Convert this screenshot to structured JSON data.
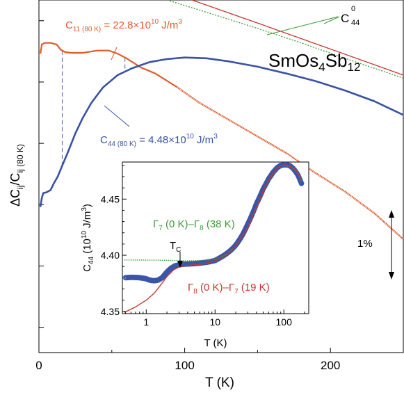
{
  "chart_data": [
    {
      "type": "line",
      "id": "main",
      "x": {
        "label": "T (K)",
        "lim": [
          0,
          250
        ],
        "ticks": [
          0,
          100,
          200
        ],
        "tick_labels": [
          "0",
          "100",
          "200"
        ]
      },
      "y": {
        "label": "ΔC",
        "label_sub": "ij",
        "label_mid": "/C",
        "label_sub2": "ij (80 K)",
        "percent_range": [
          -22.3,
          0.7
        ],
        "scale_bar": "1%"
      },
      "material": {
        "base": "SmOs",
        "s1": "4",
        "mid": "Sb",
        "s2": "12"
      },
      "series": [
        {
          "name": "C11",
          "annotation": {
            "base": "C",
            "sub": "11 (80 K)",
            "eq": " = 22.8×10",
            "sup": "10",
            "unit": " J/m",
            "sup2": "3"
          },
          "points": [
            [
              1,
              -2.8
            ],
            [
              2,
              -2.2
            ],
            [
              4,
              -2.1
            ],
            [
              8,
              -2.1
            ],
            [
              12,
              -2.2
            ],
            [
              13,
              -2.3
            ],
            [
              15,
              -2.55
            ],
            [
              18,
              -2.7
            ],
            [
              22,
              -2.75
            ],
            [
              30,
              -2.75
            ],
            [
              40,
              -2.6
            ],
            [
              48,
              -2.6
            ],
            [
              54,
              -2.8
            ],
            [
              60,
              -3.1
            ],
            [
              70,
              -3.7
            ],
            [
              80,
              -4.1
            ],
            [
              95,
              -5.0
            ],
            [
              110,
              -6.0
            ],
            [
              130,
              -7.1
            ],
            [
              150,
              -8.2
            ],
            [
              170,
              -9.3
            ],
            [
              190,
              -10.6
            ],
            [
              210,
              -11.8
            ],
            [
              230,
              -13.2
            ],
            [
              250,
              -14.9
            ]
          ]
        },
        {
          "name": "C44",
          "annotation": {
            "base": "C",
            "sub": "44 (80 K)",
            "eq": " = 4.48×10",
            "sup": "10",
            "unit": " J/m",
            "sup2": "3"
          },
          "points": [
            [
              1,
              -12.8
            ],
            [
              2,
              -12.2
            ],
            [
              3,
              -11.9
            ],
            [
              5,
              -11.85
            ],
            [
              8,
              -11.7
            ],
            [
              10,
              -11.3
            ],
            [
              13,
              -10.8
            ],
            [
              16,
              -10.1
            ],
            [
              20,
              -9.2
            ],
            [
              25,
              -8.0
            ],
            [
              30,
              -7.0
            ],
            [
              36,
              -6.0
            ],
            [
              44,
              -5.0
            ],
            [
              54,
              -4.2
            ],
            [
              64,
              -3.75
            ],
            [
              76,
              -3.35
            ],
            [
              88,
              -3.15
            ],
            [
              100,
              -3.05
            ],
            [
              115,
              -3.1
            ],
            [
              130,
              -3.3
            ],
            [
              150,
              -3.65
            ],
            [
              170,
              -4.1
            ],
            [
              190,
              -4.6
            ],
            [
              210,
              -5.2
            ],
            [
              230,
              -5.9
            ],
            [
              250,
              -6.8
            ]
          ]
        },
        {
          "name": "C44_0",
          "annotation": {
            "base": "C",
            "sub": "44",
            "sup": "0"
          },
          "points": [
            [
              88,
              0.7
            ],
            [
              120,
              -0.25
            ],
            [
              150,
              -1.15
            ],
            [
              180,
              -2.1
            ],
            [
              210,
              -3.1
            ],
            [
              250,
              -4.4
            ]
          ]
        },
        {
          "name": "C11_0",
          "points": [
            [
              105,
              0.7
            ],
            [
              150,
              -0.8
            ],
            [
              200,
              -2.5
            ],
            [
              250,
              -4.2
            ]
          ]
        }
      ],
      "vlines": [
        16,
        59
      ]
    },
    {
      "type": "line",
      "id": "inset",
      "x": {
        "label": "T (K)",
        "scale": "log",
        "lim": [
          0.45,
          230
        ],
        "ticks": [
          1,
          10,
          100
        ],
        "tick_labels": [
          "1",
          "10",
          "100"
        ]
      },
      "y": {
        "label_base": "C",
        "label_sub": "44",
        "label_rest": " (10",
        "label_sup": "10",
        "label_unit": " J/m",
        "label_sup2": "3",
        "label_end": ")",
        "lim": [
          4.348,
          4.483
        ],
        "ticks": [
          4.35,
          4.4,
          4.45
        ],
        "tick_labels": [
          "4.35",
          "4.40",
          "4.45"
        ]
      },
      "annotations": {
        "green": {
          "g1": "Γ",
          "g1s": "7",
          "t1": " (0 K)–",
          "g2": "Γ",
          "g2s": "8",
          "t2": " (38 K)"
        },
        "red": {
          "g1": "Γ",
          "g1s": "8",
          "t1": " (0 K)–",
          "g2": "Γ",
          "g2s": "7",
          "t2": " (19 K)"
        },
        "tc": {
          "base": "T",
          "sub": "C",
          "x": 2.7
        }
      },
      "series": [
        {
          "name": "data",
          "points": [
            [
              0.5,
              4.38
            ],
            [
              0.6,
              4.3803
            ],
            [
              0.7,
              4.3802
            ],
            [
              0.8,
              4.38
            ],
            [
              0.9,
              4.3795
            ],
            [
              1.0,
              4.379
            ],
            [
              1.1,
              4.378
            ],
            [
              1.2,
              4.3775
            ],
            [
              1.3,
              4.3773
            ],
            [
              1.4,
              4.3775
            ],
            [
              1.5,
              4.378
            ],
            [
              1.7,
              4.38
            ],
            [
              1.9,
              4.3835
            ],
            [
              2.1,
              4.3865
            ],
            [
              2.3,
              4.3885
            ],
            [
              2.6,
              4.3905
            ],
            [
              3,
              4.3915
            ],
            [
              3.5,
              4.392
            ],
            [
              4,
              4.3922
            ],
            [
              5,
              4.3925
            ],
            [
              6,
              4.393
            ],
            [
              7,
              4.3935
            ],
            [
              8,
              4.394
            ],
            [
              9,
              4.3947
            ],
            [
              10,
              4.3953
            ],
            [
              12,
              4.398
            ],
            [
              14,
              4.4005
            ],
            [
              17,
              4.4045
            ],
            [
              20,
              4.409
            ],
            [
              25,
              4.418
            ],
            [
              30,
              4.428
            ],
            [
              35,
              4.437
            ],
            [
              40,
              4.446
            ],
            [
              50,
              4.459
            ],
            [
              60,
              4.468
            ],
            [
              70,
              4.474
            ],
            [
              80,
              4.478
            ],
            [
              90,
              4.48
            ],
            [
              100,
              4.4805
            ],
            [
              110,
              4.4805
            ],
            [
              120,
              4.48
            ],
            [
              130,
              4.4785
            ],
            [
              140,
              4.4765
            ],
            [
              160,
              4.4715
            ],
            [
              180,
              4.464
            ]
          ]
        },
        {
          "name": "green_fit",
          "points": [
            [
              0.48,
              4.3958
            ],
            [
              1,
              4.3957
            ],
            [
              2,
              4.3955
            ],
            [
              3,
              4.3952
            ],
            [
              4,
              4.395
            ],
            [
              6,
              4.3953
            ],
            [
              8,
              4.3958
            ],
            [
              10,
              4.3965
            ],
            [
              12,
              4.3985
            ],
            [
              15,
              4.4015
            ],
            [
              20,
              4.408
            ],
            [
              30,
              4.425
            ],
            [
              40,
              4.443
            ],
            [
              50,
              4.457
            ],
            [
              60,
              4.467
            ],
            [
              70,
              4.4735
            ],
            [
              80,
              4.4775
            ],
            [
              90,
              4.4795
            ],
            [
              100,
              4.48
            ],
            [
              110,
              4.4797
            ],
            [
              120,
              4.479
            ],
            [
              140,
              4.4765
            ],
            [
              160,
              4.4725
            ],
            [
              180,
              4.466
            ]
          ]
        },
        {
          "name": "red_fit",
          "points": [
            [
              0.48,
              4.349
            ],
            [
              0.7,
              4.354
            ],
            [
              1,
              4.36
            ],
            [
              1.3,
              4.366
            ],
            [
              1.6,
              4.373
            ],
            [
              2,
              4.381
            ],
            [
              2.5,
              4.387
            ],
            [
              3,
              4.3895
            ],
            [
              3.5,
              4.3905
            ],
            [
              4,
              4.391
            ],
            [
              5,
              4.3915
            ],
            [
              6,
              4.392
            ],
            [
              7,
              4.3925
            ],
            [
              8,
              4.3935
            ],
            [
              10,
              4.395
            ],
            [
              12,
              4.397
            ],
            [
              15,
              4.4005
            ],
            [
              20,
              4.408
            ],
            [
              30,
              4.425
            ],
            [
              40,
              4.443
            ],
            [
              50,
              4.457
            ],
            [
              60,
              4.467
            ],
            [
              70,
              4.4735
            ],
            [
              80,
              4.4775
            ],
            [
              90,
              4.4795
            ],
            [
              100,
              4.4805
            ],
            [
              110,
              4.4803
            ],
            [
              120,
              4.4795
            ],
            [
              140,
              4.4775
            ],
            [
              160,
              4.4735
            ],
            [
              180,
              4.467
            ]
          ]
        }
      ]
    }
  ],
  "colors": {
    "orange": "#e05a2b",
    "blue": "#3852a4",
    "green": "#3f9a3a",
    "red": "#c8352e",
    "marker": "#3a56a8",
    "dash": "#6070b0"
  }
}
